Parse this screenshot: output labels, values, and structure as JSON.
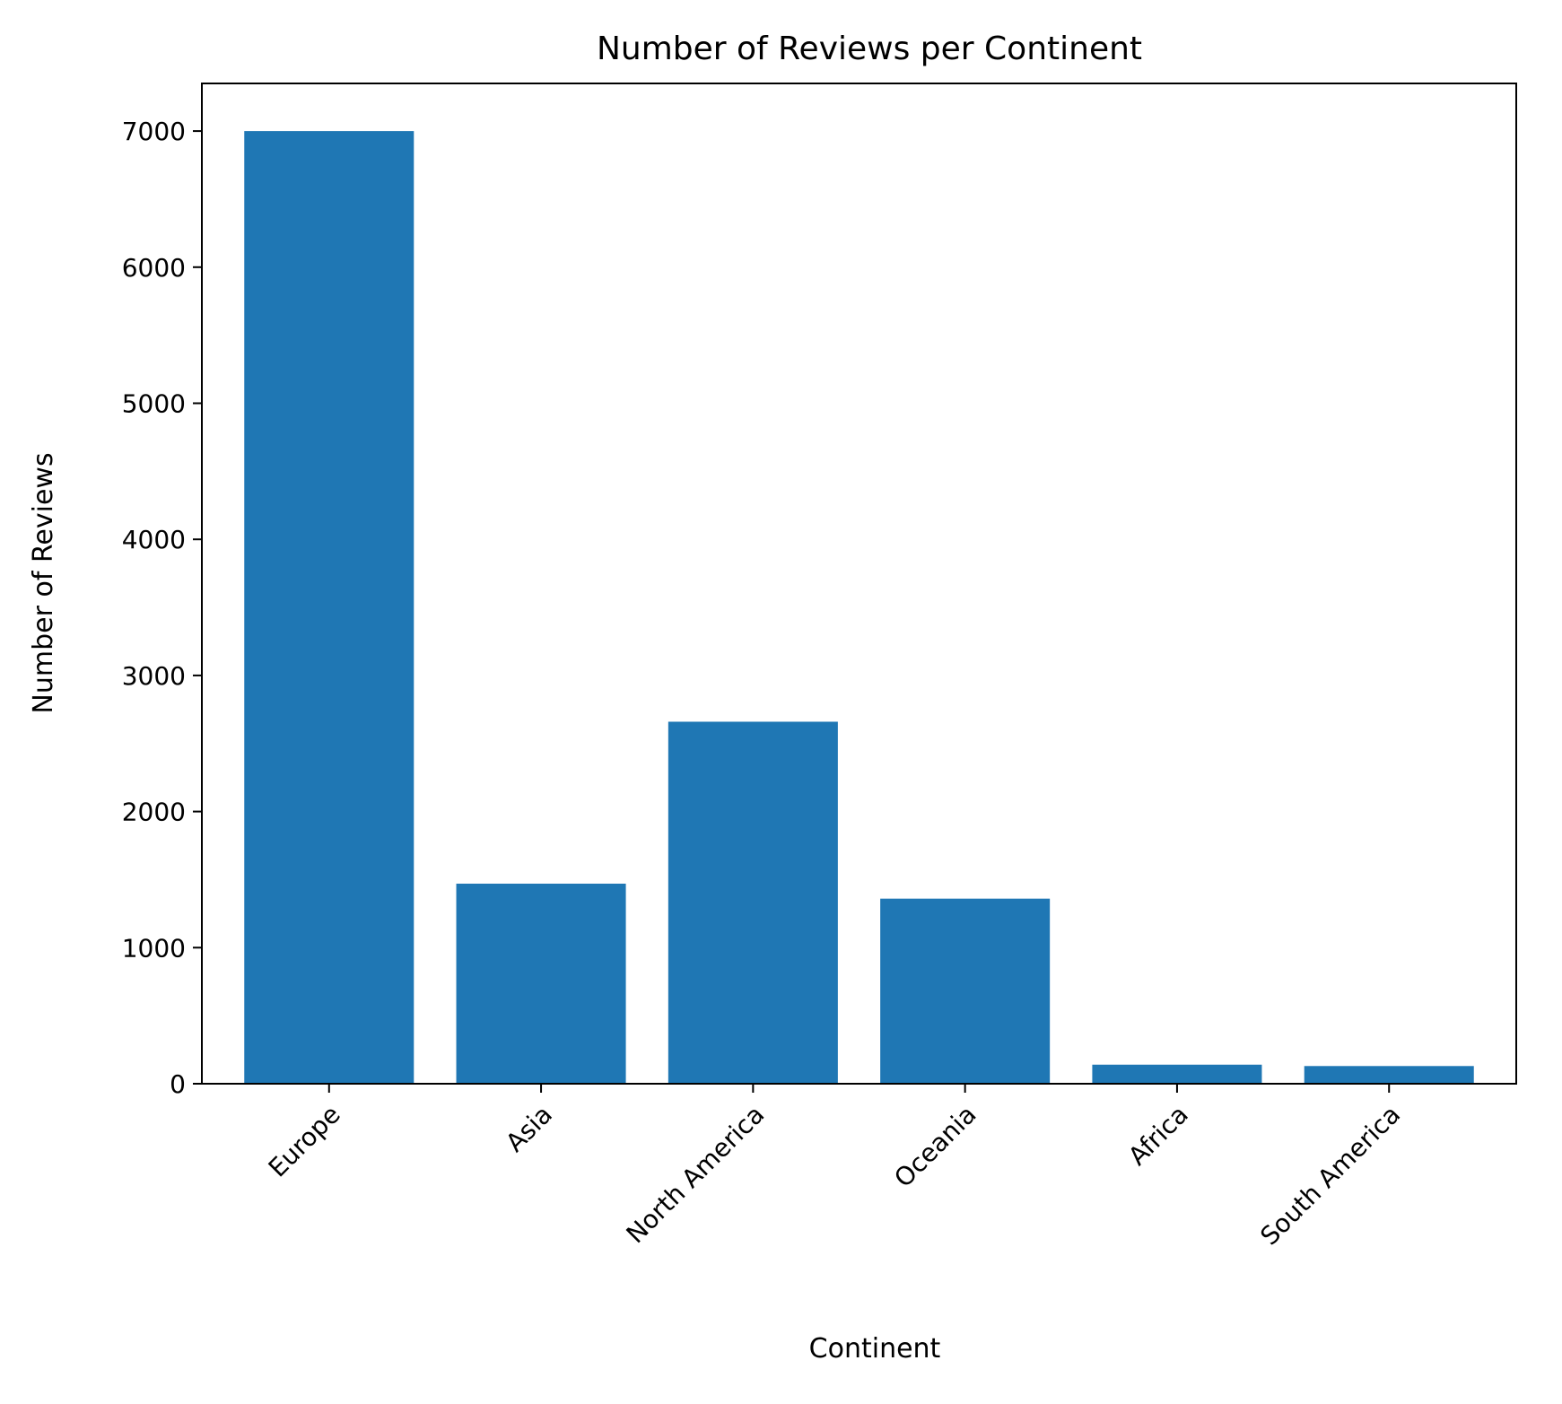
{
  "chart_data": {
    "type": "bar",
    "title": "Number of Reviews per Continent",
    "xlabel": "Continent",
    "ylabel": "Number of Reviews",
    "categories": [
      "Europe",
      "Asia",
      "North America",
      "Oceania",
      "Africa",
      "South America"
    ],
    "values": [
      7000,
      1470,
      2660,
      1360,
      140,
      130
    ],
    "ylim": [
      0,
      7350
    ],
    "yticks": [
      0,
      1000,
      2000,
      3000,
      4000,
      5000,
      6000,
      7000
    ],
    "xtick_rotation": 45,
    "grid": false,
    "legend": "none",
    "colors": {
      "bar": "#1f77b4",
      "axis": "#000000",
      "background": "#ffffff"
    }
  }
}
